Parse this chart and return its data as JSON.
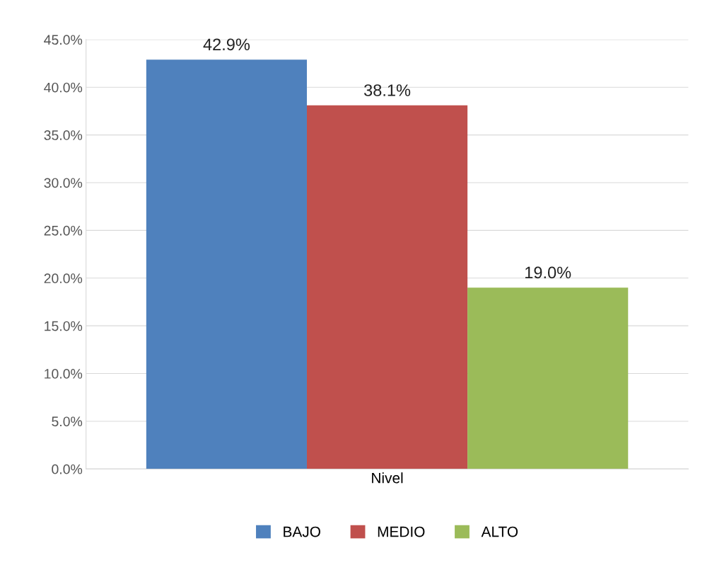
{
  "chart_data": {
    "type": "bar",
    "categories": [
      "Nivel"
    ],
    "series": [
      {
        "name": "BAJO",
        "color": "#4f81bd",
        "values": [
          42.9
        ],
        "value_labels": [
          "42.9%"
        ]
      },
      {
        "name": "MEDIO",
        "color": "#c0504d",
        "values": [
          38.1
        ],
        "value_labels": [
          "38.1%"
        ]
      },
      {
        "name": "ALTO",
        "color": "#9bbb59",
        "values": [
          19.0
        ],
        "value_labels": [
          "19.0%"
        ]
      }
    ],
    "ylim": [
      0,
      45
    ],
    "yticks": [
      {
        "value": 0,
        "label": "0.0%"
      },
      {
        "value": 5,
        "label": "5.0%"
      },
      {
        "value": 10,
        "label": "10.0%"
      },
      {
        "value": 15,
        "label": "15.0%"
      },
      {
        "value": 20,
        "label": "20.0%"
      },
      {
        "value": 25,
        "label": "25.0%"
      },
      {
        "value": 30,
        "label": "30.0%"
      },
      {
        "value": 35,
        "label": "35.0%"
      },
      {
        "value": 40,
        "label": "40.0%"
      },
      {
        "value": 45,
        "label": "45.0%"
      }
    ],
    "grid": "y",
    "legend": "bottom"
  }
}
